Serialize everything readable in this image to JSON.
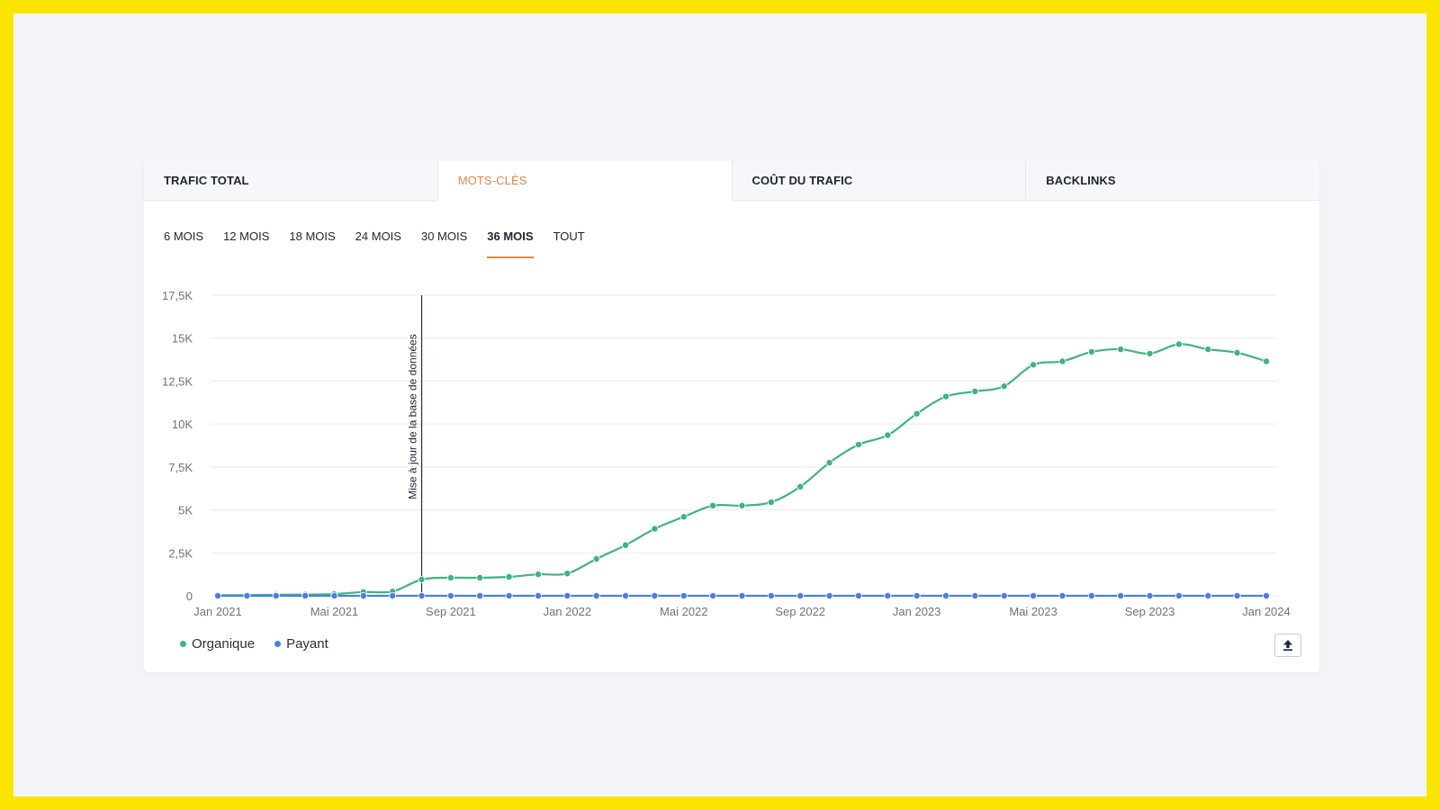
{
  "tabs": [
    {
      "label": "TRAFIC TOTAL",
      "active": false
    },
    {
      "label": "MOTS-CLÉS",
      "active": true
    },
    {
      "label": "COÛT DU TRAFIC",
      "active": false
    },
    {
      "label": "BACKLINKS",
      "active": false
    }
  ],
  "periods": [
    {
      "label": "6 MOIS",
      "active": false
    },
    {
      "label": "12 MOIS",
      "active": false
    },
    {
      "label": "18 MOIS",
      "active": false
    },
    {
      "label": "24 MOIS",
      "active": false
    },
    {
      "label": "30 MOIS",
      "active": false
    },
    {
      "label": "36 MOIS",
      "active": true
    },
    {
      "label": "TOUT",
      "active": false
    }
  ],
  "colors": {
    "accent": "#d98a4b",
    "organique": "#3fb47e",
    "payant": "#4a7fe0",
    "annotation": "#1f2a4a"
  },
  "export_icon": "upload-icon",
  "chart_data": {
    "type": "line",
    "x_start": "2021-01",
    "x_end": "2024-01",
    "x": [
      "2021-01",
      "2021-02",
      "2021-03",
      "2021-04",
      "2021-05",
      "2021-06",
      "2021-07",
      "2021-08",
      "2021-09",
      "2021-10",
      "2021-11",
      "2021-12",
      "2022-01",
      "2022-02",
      "2022-03",
      "2022-04",
      "2022-05",
      "2022-06",
      "2022-07",
      "2022-08",
      "2022-09",
      "2022-10",
      "2022-11",
      "2022-12",
      "2023-01",
      "2023-02",
      "2023-03",
      "2023-04",
      "2023-05",
      "2023-06",
      "2023-07",
      "2023-08",
      "2023-09",
      "2023-10",
      "2023-11",
      "2023-12",
      "2024-01"
    ],
    "x_tick_labels": [
      {
        "x": "2021-01",
        "label": "Jan 2021"
      },
      {
        "x": "2021-05",
        "label": "Mai 2021"
      },
      {
        "x": "2021-09",
        "label": "Sep 2021"
      },
      {
        "x": "2022-01",
        "label": "Jan 2022"
      },
      {
        "x": "2022-05",
        "label": "Mai 2022"
      },
      {
        "x": "2022-09",
        "label": "Sep 2022"
      },
      {
        "x": "2023-01",
        "label": "Jan 2023"
      },
      {
        "x": "2023-05",
        "label": "Mai 2023"
      },
      {
        "x": "2023-09",
        "label": "Sep 2023"
      },
      {
        "x": "2024-01",
        "label": "Jan 2024"
      }
    ],
    "ylim": [
      0,
      17500
    ],
    "y_ticks": [
      {
        "value": 0,
        "label": "0"
      },
      {
        "value": 2500,
        "label": "2,5K"
      },
      {
        "value": 5000,
        "label": "5K"
      },
      {
        "value": 7500,
        "label": "7,5K"
      },
      {
        "value": 10000,
        "label": "10K"
      },
      {
        "value": 12500,
        "label": "12,5K"
      },
      {
        "value": 15000,
        "label": "15K"
      },
      {
        "value": 17500,
        "label": "17,5K"
      }
    ],
    "grid": true,
    "series": [
      {
        "name": "Organique",
        "values": [
          30,
          40,
          60,
          70,
          100,
          220,
          250,
          950,
          1050,
          1050,
          1100,
          1250,
          1300,
          2150,
          2950,
          3900,
          4600,
          5250,
          5250,
          5450,
          6350,
          7750,
          8800,
          9350,
          10600,
          11600,
          11900,
          12200,
          13450,
          13650,
          14200,
          14350,
          14100,
          14650,
          14350,
          14150,
          13650
        ]
      },
      {
        "name": "Payant",
        "values": [
          0,
          0,
          0,
          0,
          0,
          0,
          0,
          0,
          0,
          0,
          0,
          0,
          0,
          0,
          0,
          0,
          0,
          0,
          0,
          0,
          0,
          0,
          0,
          0,
          0,
          0,
          0,
          0,
          0,
          0,
          0,
          0,
          0,
          0,
          0,
          0,
          0
        ]
      }
    ],
    "annotations": [
      {
        "x": "2021-08",
        "label": "Mise à jour de la base de données"
      }
    ],
    "legend_position": "bottom-left"
  }
}
